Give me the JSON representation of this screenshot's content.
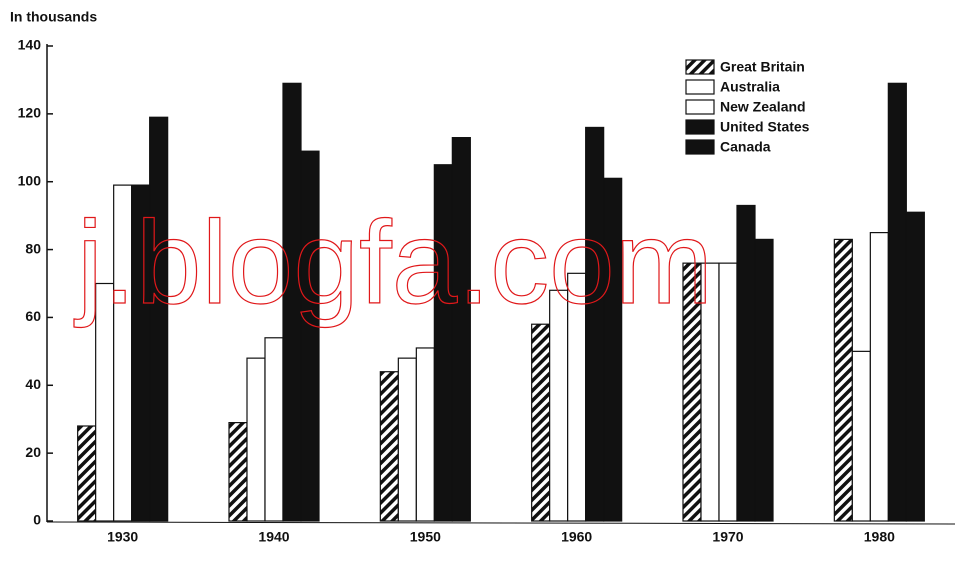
{
  "chart_data": {
    "type": "bar",
    "y_label": "In thousands",
    "watermark": "j.blogfa.com",
    "categories": [
      "1930",
      "1940",
      "1950",
      "1960",
      "1970",
      "1980"
    ],
    "series": [
      {
        "name": "Great Britain",
        "color": "#111111",
        "pattern": "hatch",
        "values": [
          28,
          29,
          44,
          58,
          76,
          83
        ]
      },
      {
        "name": "Australia",
        "color": "#ffffff",
        "values": [
          70,
          48,
          48,
          68,
          76,
          50
        ]
      },
      {
        "name": "New Zealand",
        "color": "#ffffff",
        "values": [
          99,
          54,
          51,
          73,
          76,
          85
        ]
      },
      {
        "name": "United States",
        "color": "#111111",
        "values": [
          99,
          129,
          105,
          116,
          93,
          129
        ]
      },
      {
        "name": "Canada",
        "color": "#111111",
        "values": [
          119,
          109,
          113,
          101,
          83,
          91
        ]
      }
    ],
    "ylim": [
      0,
      140
    ],
    "yticks": [
      0,
      20,
      40,
      60,
      80,
      100,
      120,
      140
    ],
    "legend": "top-right",
    "grid": false
  }
}
